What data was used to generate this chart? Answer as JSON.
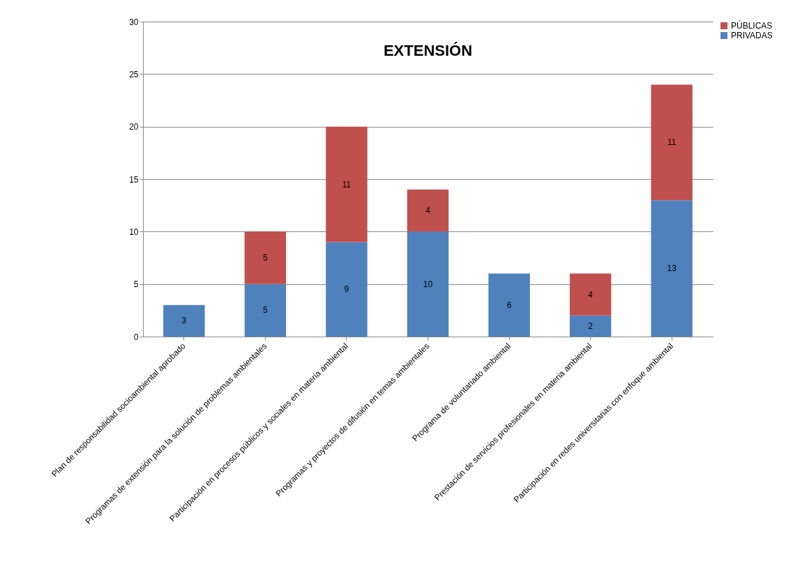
{
  "chart_data": {
    "type": "bar",
    "title": "EXTENSIÓN",
    "stacked": true,
    "categories": [
      "Plan de responsabilidad socioambiental  aprobado",
      "Programas de extensión para la solución de problemas ambientales",
      "Participación en procesos públicos y sociales en materia ambiental",
      "Programas y proyectos de difusión en temas ambientales",
      "Programa de voluntariado ambiental",
      "Prestación de servicios profesionales en materia ambiental",
      "Participación en redes universitarias  con enfoque ambiental"
    ],
    "series": [
      {
        "name": "PRIVADAS",
        "color": "#4f81bd",
        "values": [
          3,
          5,
          9,
          10,
          6,
          2,
          13
        ]
      },
      {
        "name": "PÚBLICAS",
        "color": "#c0504d",
        "values": [
          null,
          5,
          11,
          4,
          null,
          4,
          11
        ]
      }
    ],
    "ylim": [
      0,
      30
    ],
    "yticks": [
      0,
      5,
      10,
      15,
      20,
      25,
      30
    ],
    "grid": "y",
    "legend": "right",
    "data_labels": true
  }
}
